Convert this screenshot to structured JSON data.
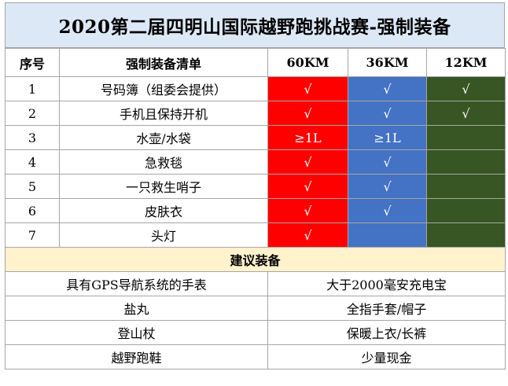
{
  "title": "2020第二届四明山国际越野跑挑战赛-强制装备",
  "headers": {
    "num": "序号",
    "item": "强制装备清单",
    "c60": "60KM",
    "c36": "36KM",
    "c12": "12KM"
  },
  "items": [
    {
      "num": "1",
      "name": "号码簿（组委会提供）",
      "c60": "√",
      "c36": "√",
      "c12": "√"
    },
    {
      "num": "2",
      "name": "手机且保持开机",
      "c60": "√",
      "c36": "√",
      "c12": "√"
    },
    {
      "num": "3",
      "name": "水壶/水袋",
      "c60": "≥1L",
      "c36": "≥1L",
      "c12": ""
    },
    {
      "num": "4",
      "name": "急救毯",
      "c60": "√",
      "c36": "√",
      "c12": ""
    },
    {
      "num": "5",
      "name": "一只救生哨子",
      "c60": "√",
      "c36": "√",
      "c12": ""
    },
    {
      "num": "6",
      "name": "皮肤衣",
      "c60": "√",
      "c36": "√",
      "c12": ""
    },
    {
      "num": "7",
      "name": "头灯",
      "c60": "√",
      "c36": "",
      "c12": ""
    }
  ],
  "section_title": "建议装备",
  "recommended": [
    {
      "left": "具有GPS导航系统的手表",
      "right": "大于2000毫安充电宝"
    },
    {
      "left": "盐丸",
      "right": "全指手套/帽子"
    },
    {
      "left": "登山杖",
      "right": "保暖上衣/长裤"
    },
    {
      "left": "越野跑鞋",
      "right": "少量现金"
    }
  ],
  "colors": {
    "c60": "#ff0000",
    "c36": "#4472c4",
    "c12": "#375623",
    "title_bg": "#dce8f6",
    "section_bg": "#fff2cc"
  }
}
